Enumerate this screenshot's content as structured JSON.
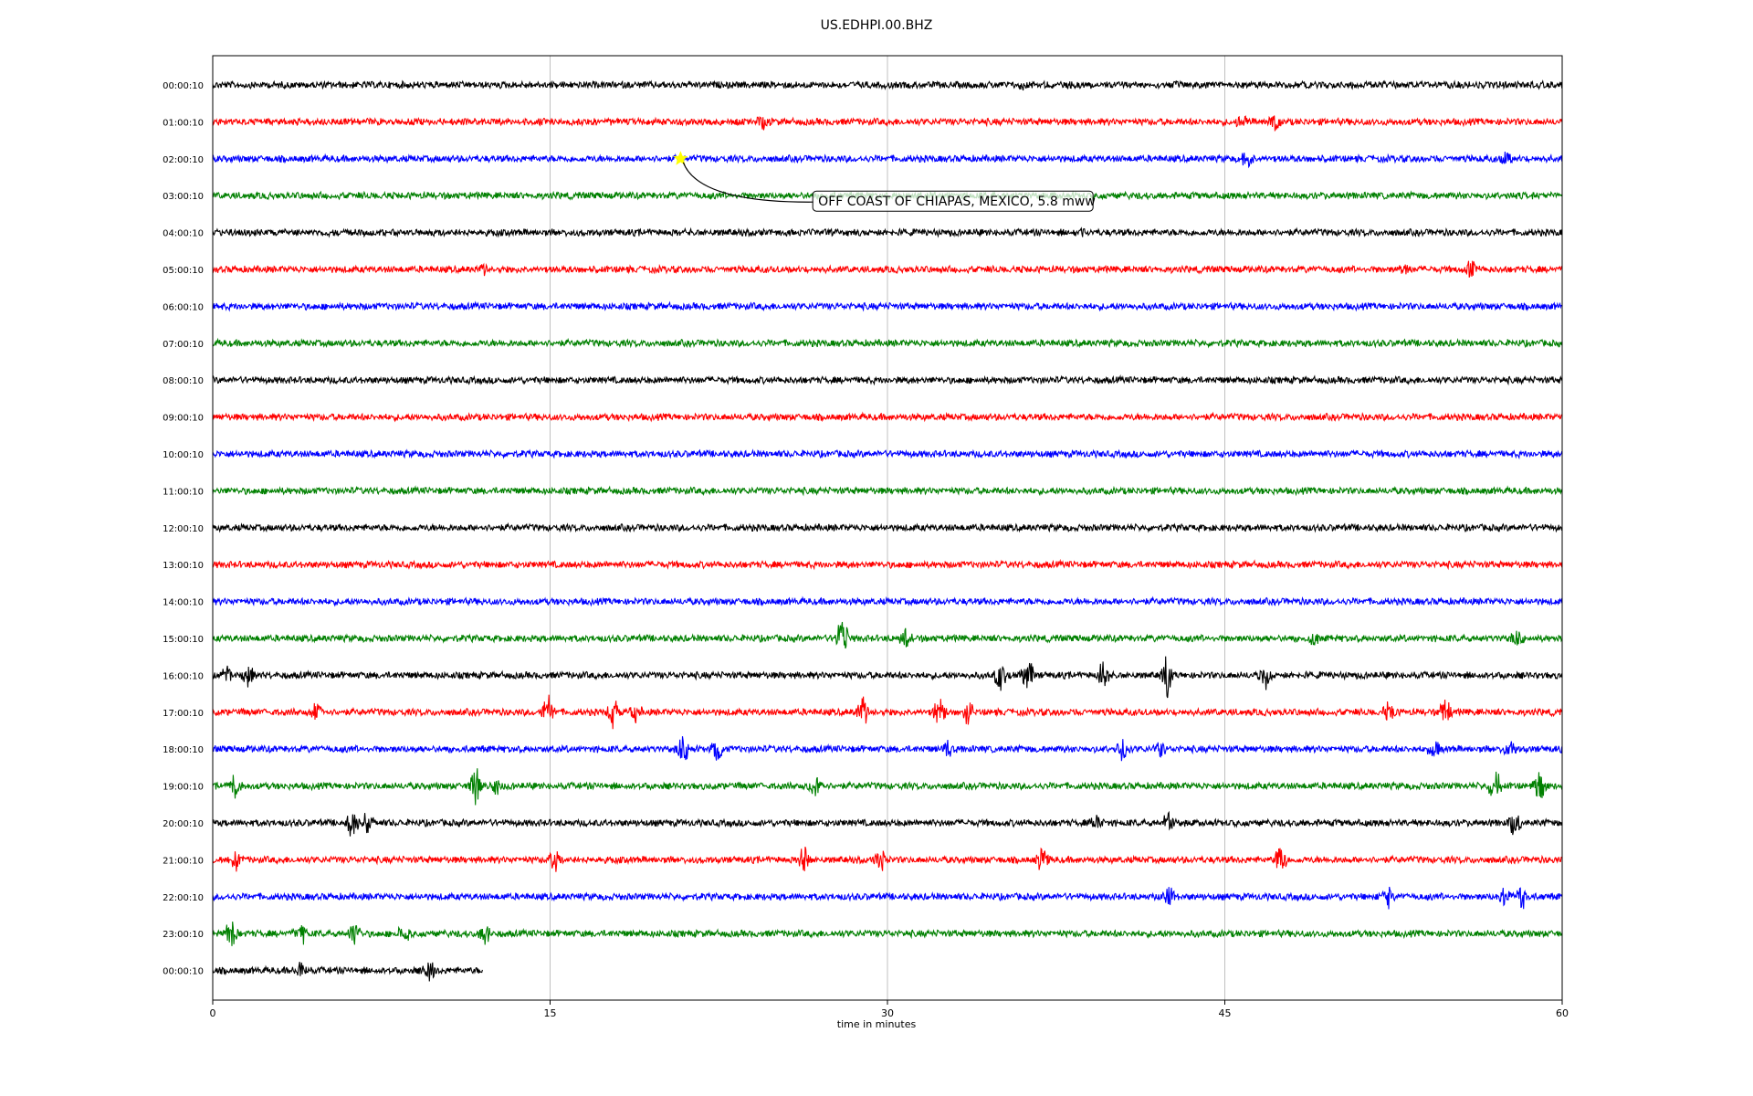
{
  "chart_data": {
    "type": "line",
    "title": "US.EDHPI.00.BHZ",
    "xlabel": "time in minutes",
    "ylabel": "",
    "xlim": [
      0,
      60
    ],
    "xticks": [
      "0",
      "15",
      "30",
      "45",
      "60"
    ],
    "xtick_values": [
      0,
      15,
      30,
      45,
      60
    ],
    "grid": "vertical",
    "colors": [
      "#000000",
      "#ff0000",
      "#0000ff",
      "#008000"
    ],
    "rows": [
      {
        "label": "00:00:10",
        "end": 60,
        "events": [
          [
            36,
            2
          ]
        ]
      },
      {
        "label": "01:00:10",
        "end": 60,
        "events": [
          [
            24.5,
            4
          ],
          [
            45.8,
            5
          ],
          [
            47.2,
            5
          ]
        ]
      },
      {
        "label": "02:00:10",
        "end": 60,
        "events": [
          [
            46,
            4
          ],
          [
            57.5,
            3
          ]
        ]
      },
      {
        "label": "03:00:10",
        "end": 60,
        "events": []
      },
      {
        "label": "04:00:10",
        "end": 60,
        "events": [
          [
            38.5,
            2
          ]
        ]
      },
      {
        "label": "05:00:10",
        "end": 60,
        "events": [
          [
            12.1,
            2
          ],
          [
            53,
            2
          ],
          [
            56,
            6
          ]
        ]
      },
      {
        "label": "06:00:10",
        "end": 60,
        "events": []
      },
      {
        "label": "07:00:10",
        "end": 60,
        "events": []
      },
      {
        "label": "08:00:10",
        "end": 60,
        "events": []
      },
      {
        "label": "09:00:10",
        "end": 60,
        "events": []
      },
      {
        "label": "10:00:10",
        "end": 60,
        "events": []
      },
      {
        "label": "11:00:10",
        "end": 60,
        "events": []
      },
      {
        "label": "12:00:10",
        "end": 60,
        "events": []
      },
      {
        "label": "13:00:10",
        "end": 60,
        "events": []
      },
      {
        "label": "14:00:10",
        "end": 60,
        "events": []
      },
      {
        "label": "15:00:10",
        "end": 60,
        "events": [
          [
            28,
            12
          ],
          [
            30.8,
            5
          ],
          [
            49,
            5
          ],
          [
            58,
            4
          ]
        ]
      },
      {
        "label": "16:00:10",
        "end": 60,
        "events": [
          [
            0.6,
            5
          ],
          [
            1.6,
            6
          ],
          [
            35,
            9
          ],
          [
            36.2,
            12
          ],
          [
            39.6,
            10
          ],
          [
            42.4,
            12
          ],
          [
            46.8,
            7
          ]
        ]
      },
      {
        "label": "17:00:10",
        "end": 60,
        "events": [
          [
            4.6,
            5
          ],
          [
            14.9,
            10
          ],
          [
            17.8,
            8
          ],
          [
            18.8,
            5
          ],
          [
            28.9,
            8
          ],
          [
            32.3,
            10
          ],
          [
            33.6,
            7
          ],
          [
            52.3,
            6
          ],
          [
            54.8,
            9
          ]
        ]
      },
      {
        "label": "18:00:10",
        "end": 60,
        "events": [
          [
            20.9,
            8
          ],
          [
            22.4,
            9
          ],
          [
            32.7,
            6
          ],
          [
            40.5,
            7
          ],
          [
            42.1,
            6
          ],
          [
            54.3,
            5
          ],
          [
            57.7,
            5
          ]
        ]
      },
      {
        "label": "19:00:10",
        "end": 60,
        "events": [
          [
            1,
            7
          ],
          [
            11.7,
            9
          ],
          [
            12.6,
            5
          ],
          [
            26.8,
            9
          ],
          [
            57,
            9
          ],
          [
            59,
            10
          ]
        ]
      },
      {
        "label": "20:00:10",
        "end": 60,
        "events": [
          [
            6.2,
            9
          ],
          [
            6.9,
            7
          ],
          [
            39.3,
            5
          ],
          [
            42.5,
            10
          ],
          [
            57.9,
            9
          ]
        ]
      },
      {
        "label": "21:00:10",
        "end": 60,
        "events": [
          [
            1,
            8
          ],
          [
            15.2,
            6
          ],
          [
            26.3,
            7
          ],
          [
            29.7,
            8
          ],
          [
            36.9,
            7
          ],
          [
            47.5,
            9
          ]
        ]
      },
      {
        "label": "22:00:10",
        "end": 60,
        "events": [
          [
            42.5,
            6
          ],
          [
            52.2,
            7
          ],
          [
            57.4,
            6
          ],
          [
            58.2,
            7
          ]
        ]
      },
      {
        "label": "23:00:10",
        "end": 60,
        "events": [
          [
            0.8,
            9
          ],
          [
            3.9,
            6
          ],
          [
            6.3,
            8
          ],
          [
            8.5,
            6
          ],
          [
            12.1,
            6
          ]
        ]
      },
      {
        "label": "00:00:10",
        "end": 12,
        "events": [
          [
            3.9,
            6
          ],
          [
            9.6,
            10
          ]
        ]
      }
    ],
    "marker": {
      "row": 2,
      "x": 20.8,
      "color": "#ffff00"
    },
    "annotation": {
      "text": "OFF COAST OF CHIAPAS, MEXICO, 5.8 mww",
      "row": 3,
      "x": 26.8
    }
  }
}
